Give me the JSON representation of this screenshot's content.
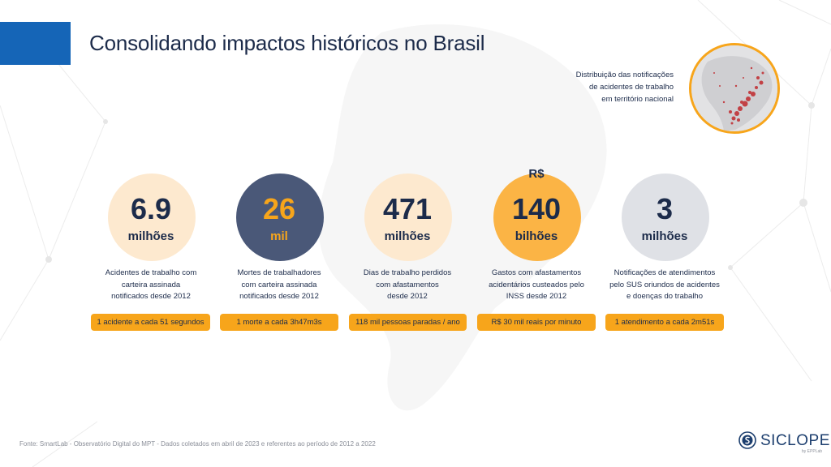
{
  "slide": {
    "title": "Consolidando impactos históricos no Brasil",
    "map_caption": [
      "Distribuição das notificações",
      "de acidentes de trabalho",
      "em território nacional"
    ],
    "accent_color": "#1565b7",
    "highlight_color": "#f7a51b"
  },
  "stats": [
    {
      "prefix": "",
      "value": "6.9",
      "unit": "milhões",
      "description": [
        "Acidentes de trabalho com",
        "carteira assinada",
        "notificados desde 2012"
      ],
      "pill": "1 acidente a cada 51 segundos",
      "bubble_color": "#fde9cf",
      "value_color": "#1c2b4a"
    },
    {
      "prefix": "",
      "value": "26",
      "unit": "mil",
      "description": [
        "Mortes de trabalhadores",
        "com carteira assinada",
        "notificados desde 2012"
      ],
      "pill": "1 morte a cada 3h47m3s",
      "bubble_color": "#4a5878",
      "value_color": "#f7a51b"
    },
    {
      "prefix": "",
      "value": "471",
      "unit": "milhões",
      "description": [
        "Dias de trabalho perdidos",
        "com afastamentos",
        "desde 2012"
      ],
      "pill": "118 mil pessoas paradas / ano",
      "bubble_color": "#fde9cf",
      "value_color": "#1c2b4a"
    },
    {
      "prefix": "R$",
      "value": "140",
      "unit": "bilhões",
      "description": [
        "Gastos com afastamentos",
        "acidentários custeados pelo",
        "INSS desde 2012"
      ],
      "pill": "R$ 30 mil reais por minuto",
      "bubble_color": "#fbb445",
      "value_color": "#1c2b4a"
    },
    {
      "prefix": "",
      "value": "3",
      "unit": "milhões",
      "description": [
        "Notificações de atendimentos",
        "pelo SUS oriundos de acidentes",
        "e doenças do trabalho"
      ],
      "pill": "1 atendimento a cada 2m51s",
      "bubble_color": "#dfe1e6",
      "value_color": "#1c2b4a"
    }
  ],
  "footer": {
    "source": "Fonte: SmartLab - Observatório Digital do MPT - Dados coletados em abril de 2023 e referentes ao período de 2012 a 2022"
  },
  "logo": {
    "name": "SICLOPE",
    "tagline": "by EPPLab"
  }
}
